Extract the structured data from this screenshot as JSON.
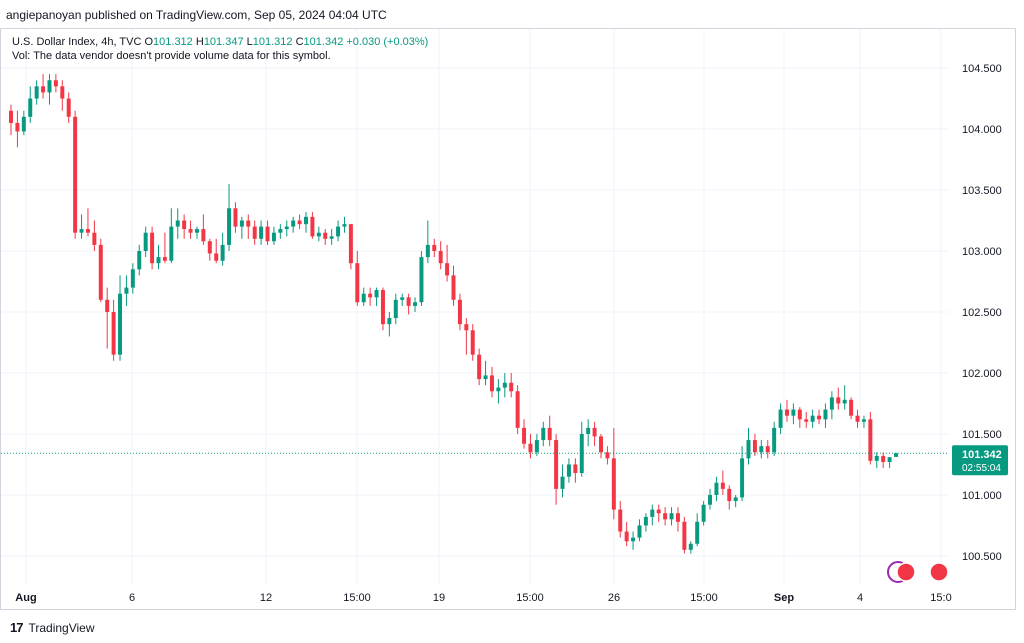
{
  "header": {
    "published": "angiepanoyan published on TradingView.com, Sep 05, 2024 04:04 UTC"
  },
  "legend": {
    "symbol": "U.S. Dollar Index, 4h, TVC",
    "o_label": "O",
    "o": "101.312",
    "h_label": "H",
    "h": "101.347",
    "l_label": "L",
    "l": "101.312",
    "c_label": "C",
    "c": "101.342",
    "change": "+0.030 (+0.03%)",
    "vol_note": "Vol: The data vendor doesn't provide volume data for this symbol."
  },
  "last_price": {
    "price": "101.342",
    "countdown": "02:55:04"
  },
  "footer": {
    "brand": "TradingView",
    "logo_mark": "17"
  },
  "colors": {
    "up": "#089981",
    "down": "#f23645",
    "grid": "#f0f3fa",
    "text": "#131722"
  },
  "chart_data": {
    "type": "candlestick",
    "y_ticks": [
      "100.500",
      "101.000",
      "101.500",
      "102.000",
      "102.500",
      "103.000",
      "103.500",
      "104.000",
      "104.500"
    ],
    "ylim": [
      100.27,
      104.82
    ],
    "x_ticks": [
      "Aug",
      "6",
      "12",
      "15:00",
      "19",
      "15:00",
      "26",
      "15:00",
      "Sep",
      "4",
      "15:0"
    ],
    "grid": true,
    "candles": [
      [
        104.15,
        104.2,
        103.95,
        104.05
      ],
      [
        104.05,
        104.15,
        103.85,
        103.98
      ],
      [
        103.98,
        104.15,
        103.95,
        104.1
      ],
      [
        104.1,
        104.35,
        104.05,
        104.25
      ],
      [
        104.25,
        104.4,
        104.2,
        104.35
      ],
      [
        104.35,
        104.45,
        104.25,
        104.3
      ],
      [
        104.3,
        104.45,
        104.2,
        104.4
      ],
      [
        104.4,
        104.45,
        104.3,
        104.35
      ],
      [
        104.35,
        104.4,
        104.15,
        104.25
      ],
      [
        104.25,
        104.3,
        104.05,
        104.1
      ],
      [
        104.1,
        104.15,
        103.1,
        103.15
      ],
      [
        103.15,
        103.3,
        103.1,
        103.18
      ],
      [
        103.18,
        103.35,
        103.12,
        103.15
      ],
      [
        103.15,
        103.25,
        103.0,
        103.05
      ],
      [
        103.05,
        103.1,
        102.58,
        102.6
      ],
      [
        102.6,
        102.7,
        102.2,
        102.5
      ],
      [
        102.5,
        102.6,
        102.1,
        102.15
      ],
      [
        102.15,
        102.8,
        102.1,
        102.65
      ],
      [
        102.65,
        102.8,
        102.55,
        102.7
      ],
      [
        102.7,
        102.9,
        102.65,
        102.85
      ],
      [
        102.85,
        103.05,
        102.8,
        103.0
      ],
      [
        103.0,
        103.2,
        102.95,
        103.15
      ],
      [
        103.15,
        103.2,
        102.85,
        102.9
      ],
      [
        102.9,
        103.05,
        102.85,
        102.95
      ],
      [
        102.95,
        103.15,
        102.9,
        102.92
      ],
      [
        102.92,
        103.35,
        102.9,
        103.2
      ],
      [
        103.2,
        103.35,
        103.1,
        103.25
      ],
      [
        103.25,
        103.3,
        103.1,
        103.18
      ],
      [
        103.18,
        103.25,
        103.1,
        103.15
      ],
      [
        103.15,
        103.2,
        103.1,
        103.18
      ],
      [
        103.18,
        103.3,
        103.05,
        103.08
      ],
      [
        103.08,
        103.1,
        102.92,
        102.98
      ],
      [
        102.98,
        103.1,
        102.9,
        102.92
      ],
      [
        102.92,
        103.15,
        102.88,
        103.05
      ],
      [
        103.05,
        103.55,
        103.0,
        103.35
      ],
      [
        103.35,
        103.4,
        103.15,
        103.2
      ],
      [
        103.2,
        103.28,
        103.1,
        103.25
      ],
      [
        103.25,
        103.3,
        103.1,
        103.2
      ],
      [
        103.2,
        103.25,
        103.05,
        103.1
      ],
      [
        103.1,
        103.25,
        103.05,
        103.2
      ],
      [
        103.2,
        103.25,
        103.05,
        103.08
      ],
      [
        103.08,
        103.2,
        103.05,
        103.15
      ],
      [
        103.15,
        103.22,
        103.1,
        103.18
      ],
      [
        103.18,
        103.25,
        103.12,
        103.2
      ],
      [
        103.2,
        103.28,
        103.15,
        103.25
      ],
      [
        103.25,
        103.3,
        103.18,
        103.22
      ],
      [
        103.22,
        103.32,
        103.15,
        103.28
      ],
      [
        103.28,
        103.32,
        103.1,
        103.12
      ],
      [
        103.12,
        103.2,
        103.08,
        103.15
      ],
      [
        103.15,
        103.18,
        103.05,
        103.1
      ],
      [
        103.1,
        103.18,
        103.05,
        103.12
      ],
      [
        103.12,
        103.25,
        103.08,
        103.2
      ],
      [
        103.2,
        103.28,
        103.15,
        103.22
      ],
      [
        103.22,
        103.22,
        102.85,
        102.9
      ],
      [
        102.9,
        103.0,
        102.55,
        102.58
      ],
      [
        102.58,
        102.7,
        102.55,
        102.65
      ],
      [
        102.65,
        102.7,
        102.55,
        102.62
      ],
      [
        102.62,
        102.7,
        102.55,
        102.68
      ],
      [
        102.68,
        102.7,
        102.35,
        102.4
      ],
      [
        102.4,
        102.5,
        102.3,
        102.45
      ],
      [
        102.45,
        102.65,
        102.4,
        102.6
      ],
      [
        102.6,
        102.65,
        102.55,
        102.62
      ],
      [
        102.62,
        102.65,
        102.48,
        102.55
      ],
      [
        102.55,
        102.62,
        102.5,
        102.58
      ],
      [
        102.58,
        103.0,
        102.55,
        102.95
      ],
      [
        102.95,
        103.25,
        102.9,
        103.05
      ],
      [
        103.05,
        103.1,
        102.95,
        103.0
      ],
      [
        103.0,
        103.08,
        102.85,
        102.9
      ],
      [
        102.9,
        103.05,
        102.75,
        102.8
      ],
      [
        102.8,
        102.88,
        102.55,
        102.6
      ],
      [
        102.6,
        102.65,
        102.35,
        102.4
      ],
      [
        102.4,
        102.45,
        102.15,
        102.35
      ],
      [
        102.35,
        102.4,
        102.1,
        102.15
      ],
      [
        102.15,
        102.2,
        101.9,
        101.95
      ],
      [
        101.95,
        102.1,
        101.9,
        101.98
      ],
      [
        101.98,
        102.05,
        101.8,
        101.85
      ],
      [
        101.85,
        101.95,
        101.75,
        101.88
      ],
      [
        101.88,
        102.0,
        101.8,
        101.92
      ],
      [
        101.92,
        102.0,
        101.8,
        101.85
      ],
      [
        101.85,
        101.9,
        101.5,
        101.55
      ],
      [
        101.55,
        101.62,
        101.38,
        101.42
      ],
      [
        101.42,
        101.5,
        101.3,
        101.35
      ],
      [
        101.35,
        101.5,
        101.32,
        101.45
      ],
      [
        101.45,
        101.6,
        101.4,
        101.55
      ],
      [
        101.55,
        101.65,
        101.4,
        101.45
      ],
      [
        101.45,
        101.5,
        100.92,
        101.05
      ],
      [
        101.05,
        101.25,
        100.98,
        101.15
      ],
      [
        101.15,
        101.3,
        101.1,
        101.25
      ],
      [
        101.25,
        101.3,
        101.1,
        101.18
      ],
      [
        101.18,
        101.6,
        101.15,
        101.5
      ],
      [
        101.5,
        101.62,
        101.4,
        101.55
      ],
      [
        101.55,
        101.6,
        101.4,
        101.48
      ],
      [
        101.48,
        101.5,
        101.3,
        101.35
      ],
      [
        101.35,
        101.4,
        101.25,
        101.3
      ],
      [
        101.3,
        101.55,
        100.8,
        100.88
      ],
      [
        100.88,
        100.95,
        100.65,
        100.7
      ],
      [
        100.7,
        100.78,
        100.58,
        100.62
      ],
      [
        100.62,
        100.7,
        100.55,
        100.65
      ],
      [
        100.65,
        100.8,
        100.62,
        100.75
      ],
      [
        100.75,
        100.85,
        100.7,
        100.82
      ],
      [
        100.82,
        100.92,
        100.75,
        100.88
      ],
      [
        100.88,
        100.92,
        100.78,
        100.85
      ],
      [
        100.85,
        100.9,
        100.75,
        100.8
      ],
      [
        100.8,
        100.9,
        100.75,
        100.85
      ],
      [
        100.85,
        100.9,
        100.7,
        100.78
      ],
      [
        100.78,
        100.82,
        100.52,
        100.55
      ],
      [
        100.55,
        100.62,
        100.52,
        100.6
      ],
      [
        100.6,
        100.85,
        100.58,
        100.78
      ],
      [
        100.78,
        100.95,
        100.75,
        100.92
      ],
      [
        100.92,
        101.05,
        100.88,
        101.0
      ],
      [
        101.0,
        101.15,
        100.95,
        101.1
      ],
      [
        101.1,
        101.2,
        101.0,
        101.05
      ],
      [
        101.05,
        101.08,
        100.88,
        100.95
      ],
      [
        100.95,
        101.0,
        100.9,
        100.98
      ],
      [
        100.98,
        101.4,
        100.95,
        101.3
      ],
      [
        101.3,
        101.55,
        101.25,
        101.45
      ],
      [
        101.45,
        101.5,
        101.32,
        101.35
      ],
      [
        101.35,
        101.45,
        101.3,
        101.4
      ],
      [
        101.4,
        101.45,
        101.3,
        101.35
      ],
      [
        101.35,
        101.6,
        101.32,
        101.55
      ],
      [
        101.55,
        101.75,
        101.5,
        101.7
      ],
      [
        101.7,
        101.78,
        101.6,
        101.65
      ],
      [
        101.65,
        101.75,
        101.58,
        101.7
      ],
      [
        101.7,
        101.72,
        101.55,
        101.62
      ],
      [
        101.62,
        101.68,
        101.55,
        101.6
      ],
      [
        101.6,
        101.7,
        101.55,
        101.65
      ],
      [
        101.65,
        101.7,
        101.58,
        101.62
      ],
      [
        101.62,
        101.75,
        101.55,
        101.7
      ],
      [
        101.7,
        101.85,
        101.62,
        101.8
      ],
      [
        101.8,
        101.88,
        101.7,
        101.75
      ],
      [
        101.75,
        101.9,
        101.7,
        101.78
      ],
      [
        101.78,
        101.8,
        101.62,
        101.65
      ],
      [
        101.65,
        101.7,
        101.55,
        101.6
      ],
      [
        101.6,
        101.65,
        101.55,
        101.62
      ],
      [
        101.62,
        101.68,
        101.25,
        101.28
      ],
      [
        101.28,
        101.35,
        101.22,
        101.32
      ],
      [
        101.32,
        101.35,
        101.22,
        101.27
      ],
      [
        101.27,
        101.3,
        101.22,
        101.31
      ],
      [
        101.312,
        101.347,
        101.312,
        101.342
      ]
    ]
  }
}
